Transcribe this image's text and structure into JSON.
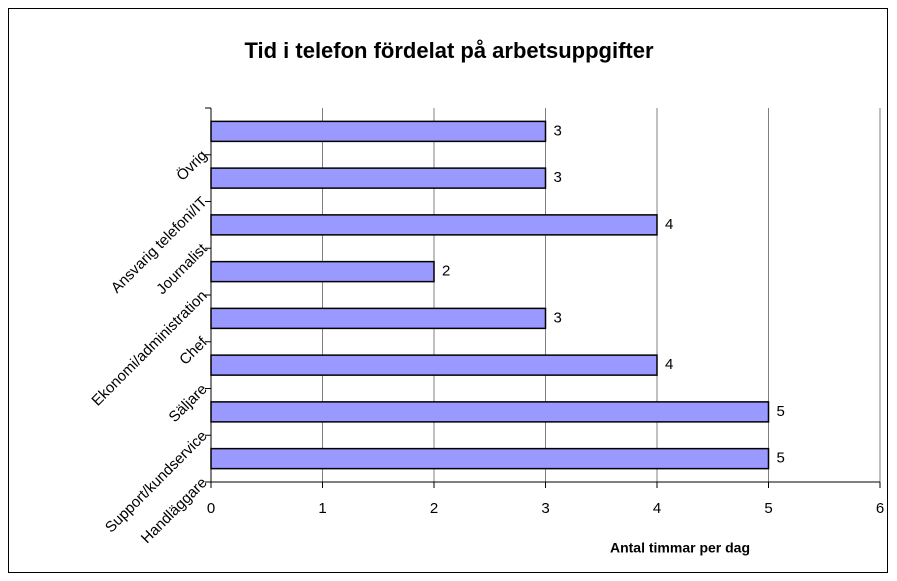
{
  "chart_data": {
    "type": "bar",
    "orientation": "horizontal",
    "title": "Tid i telefon fördelat på arbetsuppgifter",
    "x_label": "Antal timmar per dag",
    "categories": [
      "Handläggare",
      "Support/kundservice",
      "Säljare",
      "Chef",
      "Ekonomi/administration",
      "Journalist",
      "Ansvarig telefoni/IT",
      "Övrig"
    ],
    "values": [
      5,
      5,
      4,
      3,
      2,
      4,
      3,
      3
    ],
    "color": "#9999ff",
    "xlim": [
      0,
      6
    ],
    "xticks": [
      0,
      1,
      2,
      3,
      4,
      5,
      6
    ],
    "grid": true
  }
}
